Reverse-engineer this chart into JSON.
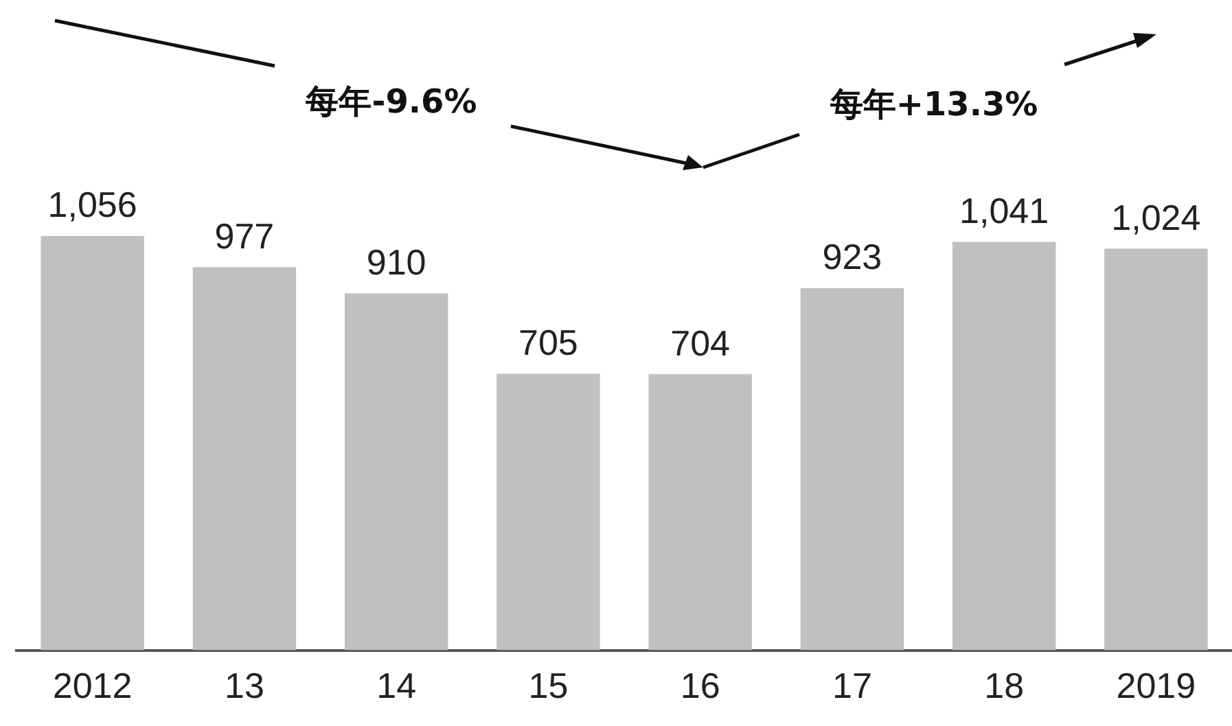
{
  "chart_data": {
    "type": "bar",
    "categories": [
      "2012",
      "13",
      "14",
      "15",
      "16",
      "17",
      "18",
      "2019"
    ],
    "values": [
      1056,
      977,
      910,
      705,
      704,
      923,
      1041,
      1024
    ],
    "color": "#c0c0c0",
    "value_labels": [
      "1,056",
      "977",
      "910",
      "705",
      "704",
      "923",
      "1,041",
      "1,024"
    ],
    "grid": false,
    "legend": false,
    "annotations": [
      "每年-9.6%",
      "每年+13.3%"
    ]
  }
}
